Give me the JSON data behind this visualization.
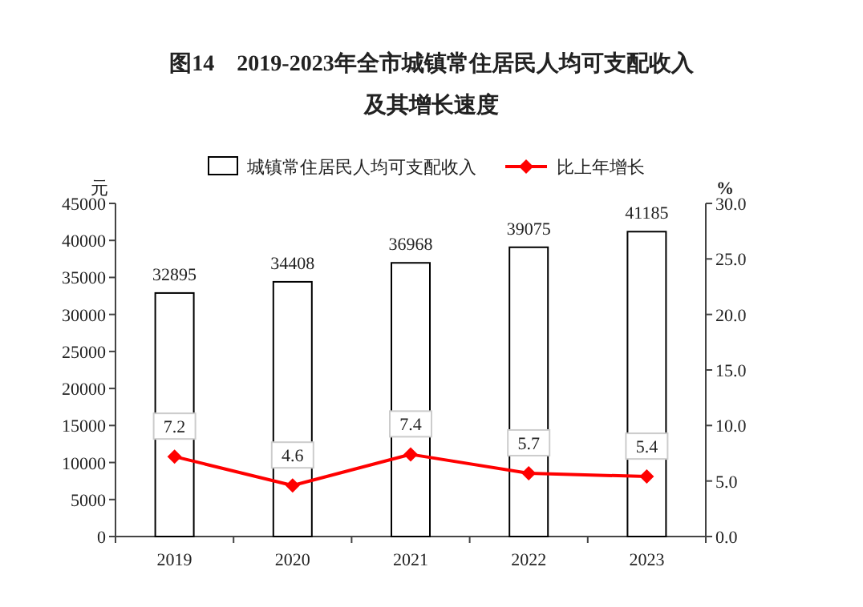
{
  "chart_data": {
    "type": "bar",
    "title": "图14　2019-2023年全市城镇常住居民人均可支配收入",
    "subtitle": "及其增长速度",
    "categories": [
      "2019",
      "2020",
      "2021",
      "2022",
      "2023"
    ],
    "series": [
      {
        "name": "城镇常住居民人均可支配收入",
        "color": "#ffffff",
        "values": [
          32895,
          34408,
          36968,
          39075,
          41185
        ]
      },
      {
        "name": "比上年增长",
        "type": "line",
        "axis": "y2",
        "color": "#ff0000",
        "values": [
          7.2,
          4.6,
          7.4,
          5.7,
          5.4
        ]
      }
    ],
    "ylabel": "元",
    "y2label": "%",
    "ylim": [
      0,
      45000
    ],
    "yticks": [
      0,
      5000,
      10000,
      15000,
      20000,
      25000,
      30000,
      35000,
      40000,
      45000
    ],
    "y2lim": [
      0,
      30
    ],
    "y2ticks": [
      {
        "value": 0,
        "label": "0.0"
      },
      {
        "value": 5,
        "label": "5.0"
      },
      {
        "value": 10,
        "label": "10.0"
      },
      {
        "value": 15,
        "label": "15.0"
      },
      {
        "value": 20,
        "label": "20.0"
      },
      {
        "value": 25,
        "label": "25.0"
      },
      {
        "value": 30,
        "label": "30.0"
      }
    ],
    "data_labels": true,
    "legend": "top",
    "marker": "diamond",
    "grid": false
  }
}
